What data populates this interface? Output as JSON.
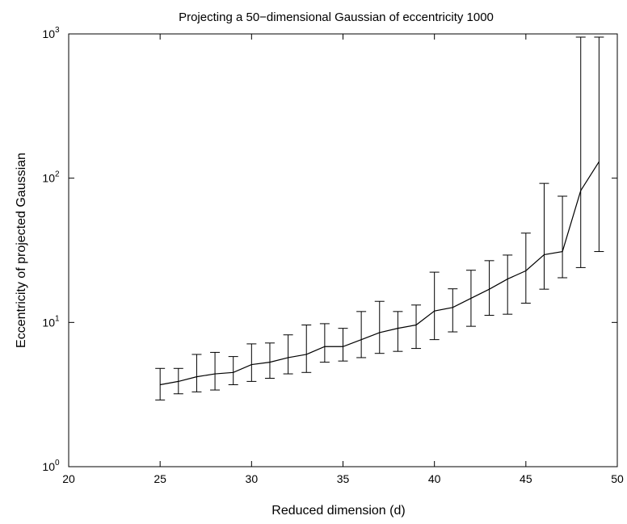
{
  "chart_data": {
    "type": "line",
    "title": "Projecting a 50−dimensional Gaussian of eccentricity 1000",
    "xlabel": "Reduced dimension (d)",
    "ylabel": "Eccentricity of projected Gaussian",
    "xlim": [
      20,
      50
    ],
    "ylim": [
      1,
      1000
    ],
    "yscale": "log",
    "grid": false,
    "x_ticks": [
      20,
      25,
      30,
      35,
      40,
      45,
      50
    ],
    "y_ticks": [
      {
        "value": 1,
        "base": "10",
        "exp": "0"
      },
      {
        "value": 10,
        "base": "10",
        "exp": "1"
      },
      {
        "value": 100,
        "base": "10",
        "exp": "2"
      },
      {
        "value": 1000,
        "base": "10",
        "exp": "3"
      }
    ],
    "series": [
      {
        "x": [
          25,
          26,
          27,
          28,
          29,
          30,
          31,
          32,
          33,
          34,
          35,
          36,
          37,
          38,
          39,
          40,
          41,
          42,
          43,
          44,
          45,
          46,
          47,
          48,
          49
        ],
        "y": [
          3.7,
          3.9,
          4.2,
          4.4,
          4.5,
          5.1,
          5.3,
          5.7,
          6.0,
          6.8,
          6.8,
          7.6,
          8.5,
          9.1,
          9.6,
          12.0,
          12.7,
          14.7,
          17.0,
          20.0,
          22.8,
          29.5,
          31.0,
          82.0,
          130.0
        ],
        "y_low": [
          2.9,
          3.2,
          3.3,
          3.4,
          3.7,
          3.9,
          4.1,
          4.4,
          4.5,
          5.3,
          5.4,
          5.7,
          6.1,
          6.3,
          6.6,
          7.6,
          8.6,
          9.4,
          11.2,
          11.4,
          13.6,
          17.0,
          20.4,
          24.0,
          31.0
        ],
        "y_high": [
          4.8,
          4.8,
          6.0,
          6.2,
          5.8,
          7.1,
          7.2,
          8.2,
          9.6,
          9.8,
          9.1,
          11.9,
          14.0,
          11.9,
          13.2,
          22.3,
          17.1,
          23.0,
          26.8,
          29.3,
          41.6,
          92.0,
          75.0,
          950.0,
          950.0
        ],
        "color": "#000000"
      }
    ]
  }
}
